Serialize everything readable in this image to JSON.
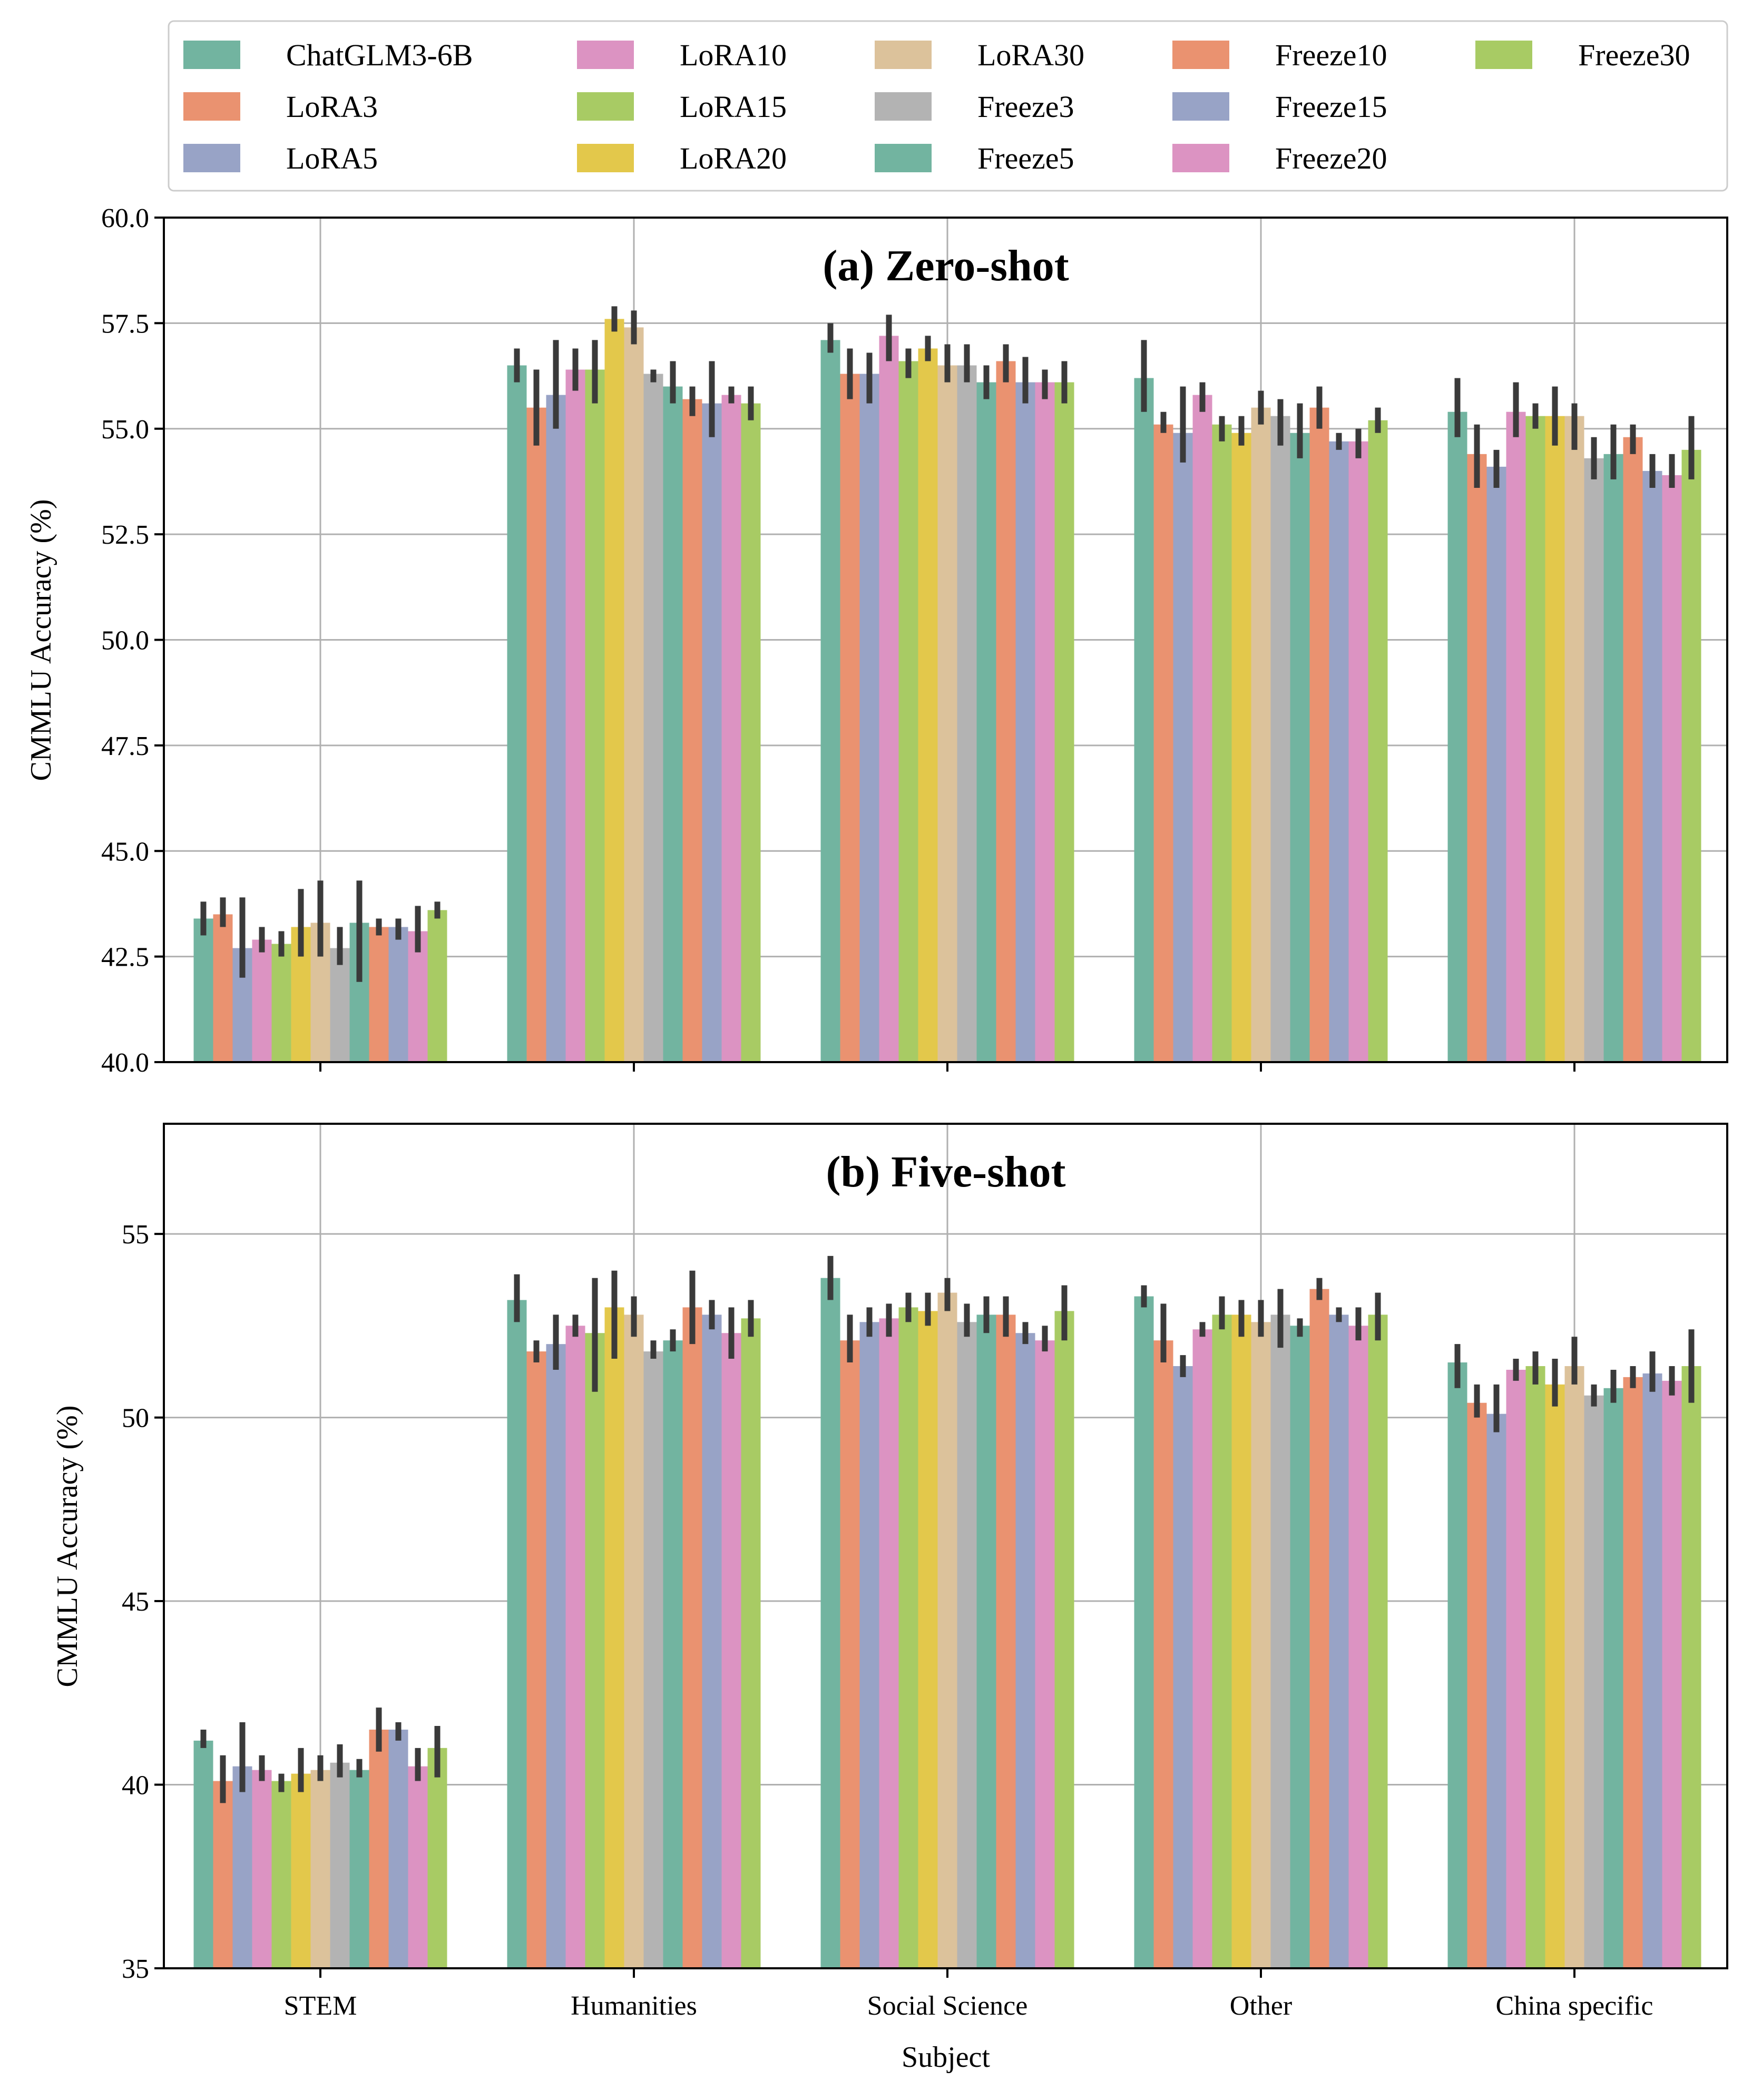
{
  "chart_data": [
    {
      "type": "bar",
      "title": "(a) Zero-shot",
      "xlabel": "",
      "ylabel": "CMMLU Accuracy (%)",
      "ylim": [
        40.0,
        60.0
      ],
      "yticks": [
        "40.0",
        "42.5",
        "45.0",
        "47.5",
        "50.0",
        "52.5",
        "55.0",
        "57.5",
        "60.0"
      ],
      "ytick_values": [
        40.0,
        42.5,
        45.0,
        47.5,
        50.0,
        52.5,
        55.0,
        57.5,
        60.0
      ],
      "grid": true,
      "categories": [
        "STEM",
        "Humanities",
        "Social Science",
        "Other",
        "China specific"
      ],
      "series": [
        {
          "name": "ChatGLM3-6B",
          "values": [
            43.4,
            56.5,
            57.1,
            56.2,
            55.4
          ],
          "err_low": [
            43.0,
            56.1,
            56.8,
            55.4,
            54.8
          ],
          "err_high": [
            43.8,
            56.9,
            57.5,
            57.1,
            56.2
          ]
        },
        {
          "name": "LoRA3",
          "values": [
            43.5,
            55.5,
            56.3,
            55.1,
            54.4
          ],
          "err_low": [
            43.2,
            54.6,
            55.7,
            54.9,
            53.6
          ],
          "err_high": [
            43.9,
            56.4,
            56.9,
            55.4,
            55.1
          ]
        },
        {
          "name": "LoRA5",
          "values": [
            42.7,
            55.8,
            56.3,
            54.9,
            54.1
          ],
          "err_low": [
            42.0,
            55.0,
            55.6,
            54.2,
            53.6
          ],
          "err_high": [
            43.9,
            57.1,
            56.8,
            56.0,
            54.5
          ]
        },
        {
          "name": "LoRA10",
          "values": [
            42.9,
            56.4,
            57.2,
            55.8,
            55.4
          ],
          "err_low": [
            42.6,
            55.9,
            56.6,
            55.4,
            54.8
          ],
          "err_high": [
            43.2,
            56.9,
            57.7,
            56.1,
            56.1
          ]
        },
        {
          "name": "LoRA15",
          "values": [
            42.8,
            56.4,
            56.6,
            55.1,
            55.3
          ],
          "err_low": [
            42.5,
            55.6,
            56.2,
            54.7,
            55.0
          ],
          "err_high": [
            43.1,
            57.1,
            56.9,
            55.3,
            55.6
          ]
        },
        {
          "name": "LoRA20",
          "values": [
            43.2,
            57.6,
            56.9,
            54.9,
            55.3
          ],
          "err_low": [
            42.5,
            57.3,
            56.6,
            54.6,
            54.6
          ],
          "err_high": [
            44.1,
            57.9,
            57.2,
            55.3,
            56.0
          ]
        },
        {
          "name": "LoRA30",
          "values": [
            43.3,
            57.4,
            56.5,
            55.5,
            55.3
          ],
          "err_low": [
            42.5,
            57.0,
            56.1,
            55.1,
            54.5
          ],
          "err_high": [
            44.3,
            57.8,
            57.0,
            55.9,
            55.6
          ]
        },
        {
          "name": "Freeze3",
          "values": [
            42.7,
            56.3,
            56.5,
            55.3,
            54.3
          ],
          "err_low": [
            42.3,
            56.1,
            56.1,
            54.6,
            53.8
          ],
          "err_high": [
            43.2,
            56.4,
            57.0,
            55.7,
            54.8
          ]
        },
        {
          "name": "Freeze5",
          "values": [
            43.3,
            56.0,
            56.1,
            54.9,
            54.4
          ],
          "err_low": [
            41.9,
            55.6,
            55.7,
            54.3,
            53.8
          ],
          "err_high": [
            44.3,
            56.6,
            56.5,
            55.6,
            55.1
          ]
        },
        {
          "name": "Freeze10",
          "values": [
            43.2,
            55.7,
            56.6,
            55.5,
            54.8
          ],
          "err_low": [
            43.0,
            55.3,
            56.1,
            55.0,
            54.4
          ],
          "err_high": [
            43.4,
            56.0,
            57.0,
            56.0,
            55.1
          ]
        },
        {
          "name": "Freeze15",
          "values": [
            43.2,
            55.6,
            56.1,
            54.7,
            54.0
          ],
          "err_low": [
            42.9,
            54.8,
            55.6,
            54.5,
            53.6
          ],
          "err_high": [
            43.4,
            56.6,
            56.7,
            54.9,
            54.4
          ]
        },
        {
          "name": "Freeze20",
          "values": [
            43.1,
            55.8,
            56.1,
            54.7,
            53.9
          ],
          "err_low": [
            42.6,
            55.6,
            55.7,
            54.3,
            53.6
          ],
          "err_high": [
            43.7,
            56.0,
            56.4,
            55.0,
            54.4
          ]
        },
        {
          "name": "Freeze30",
          "values": [
            43.6,
            55.6,
            56.1,
            55.2,
            54.5
          ],
          "err_low": [
            43.4,
            55.2,
            55.6,
            54.9,
            53.8
          ],
          "err_high": [
            43.8,
            56.0,
            56.6,
            55.5,
            55.3
          ]
        }
      ]
    },
    {
      "type": "bar",
      "title": "(b) Five-shot",
      "xlabel": "Subject",
      "ylabel": "CMMLU Accuracy (%)",
      "ylim": [
        35.0,
        58.0
      ],
      "yticks": [
        "35",
        "40",
        "45",
        "50",
        "55"
      ],
      "ytick_values": [
        35,
        40,
        45,
        50,
        55
      ],
      "grid": true,
      "categories": [
        "STEM",
        "Humanities",
        "Social Science",
        "Other",
        "China specific"
      ],
      "series": [
        {
          "name": "ChatGLM3-6B",
          "values": [
            41.2,
            53.2,
            53.8,
            53.3,
            51.5
          ],
          "err_low": [
            41.0,
            52.6,
            53.2,
            53.0,
            50.8
          ],
          "err_high": [
            41.5,
            53.9,
            54.4,
            53.6,
            52.0
          ]
        },
        {
          "name": "LoRA3",
          "values": [
            40.1,
            51.8,
            52.1,
            52.1,
            50.4
          ],
          "err_low": [
            39.5,
            51.5,
            51.5,
            51.5,
            50.0
          ],
          "err_high": [
            40.8,
            52.1,
            52.8,
            53.1,
            50.9
          ]
        },
        {
          "name": "LoRA5",
          "values": [
            40.5,
            52.0,
            52.6,
            51.4,
            50.1
          ],
          "err_low": [
            39.8,
            51.3,
            52.2,
            51.1,
            49.6
          ],
          "err_high": [
            41.7,
            52.8,
            53.0,
            51.7,
            50.9
          ]
        },
        {
          "name": "LoRA10",
          "values": [
            40.4,
            52.5,
            52.7,
            52.4,
            51.3
          ],
          "err_low": [
            40.1,
            52.2,
            52.2,
            52.2,
            51.0
          ],
          "err_high": [
            40.8,
            52.8,
            53.1,
            52.6,
            51.6
          ]
        },
        {
          "name": "LoRA15",
          "values": [
            40.1,
            52.3,
            53.0,
            52.8,
            51.4
          ],
          "err_low": [
            39.8,
            50.7,
            52.6,
            52.4,
            50.9
          ],
          "err_high": [
            40.3,
            53.8,
            53.4,
            53.3,
            51.8
          ]
        },
        {
          "name": "LoRA20",
          "values": [
            40.3,
            53.0,
            52.9,
            52.8,
            50.9
          ],
          "err_low": [
            39.8,
            51.6,
            52.5,
            52.2,
            50.3
          ],
          "err_high": [
            41.0,
            54.0,
            53.4,
            53.2,
            51.6
          ]
        },
        {
          "name": "LoRA30",
          "values": [
            40.4,
            52.8,
            53.4,
            52.6,
            51.4
          ],
          "err_low": [
            40.1,
            52.2,
            52.9,
            52.2,
            50.9
          ],
          "err_high": [
            40.8,
            53.3,
            53.8,
            53.2,
            52.2
          ]
        },
        {
          "name": "Freeze3",
          "values": [
            40.6,
            51.8,
            52.6,
            52.8,
            50.6
          ],
          "err_low": [
            40.2,
            51.6,
            52.2,
            51.9,
            50.3
          ],
          "err_high": [
            41.1,
            52.1,
            53.1,
            53.5,
            50.9
          ]
        },
        {
          "name": "Freeze5",
          "values": [
            40.4,
            52.1,
            52.8,
            52.5,
            50.8
          ],
          "err_low": [
            40.2,
            51.8,
            52.3,
            52.2,
            50.4
          ],
          "err_high": [
            40.7,
            52.4,
            53.3,
            52.7,
            51.3
          ]
        },
        {
          "name": "Freeze10",
          "values": [
            41.5,
            53.0,
            52.8,
            53.5,
            51.1
          ],
          "err_low": [
            40.9,
            52.0,
            52.2,
            53.2,
            50.8
          ],
          "err_high": [
            42.1,
            54.0,
            53.3,
            53.8,
            51.4
          ]
        },
        {
          "name": "Freeze15",
          "values": [
            41.5,
            52.8,
            52.3,
            52.8,
            51.2
          ],
          "err_low": [
            41.2,
            52.4,
            52.0,
            52.6,
            50.7
          ],
          "err_high": [
            41.7,
            53.2,
            52.6,
            53.0,
            51.8
          ]
        },
        {
          "name": "Freeze20",
          "values": [
            40.5,
            52.3,
            52.1,
            52.5,
            51.0
          ],
          "err_low": [
            40.1,
            51.6,
            51.8,
            52.1,
            50.6
          ],
          "err_high": [
            41.0,
            53.0,
            52.5,
            53.0,
            51.4
          ]
        },
        {
          "name": "Freeze30",
          "values": [
            41.0,
            52.7,
            52.9,
            52.8,
            51.4
          ],
          "err_low": [
            40.2,
            52.2,
            52.1,
            52.1,
            50.4
          ],
          "err_high": [
            41.6,
            53.2,
            53.6,
            53.4,
            52.4
          ]
        }
      ]
    }
  ],
  "colors": [
    "#72b4a0",
    "#ea9270",
    "#98a3c6",
    "#dc93c2",
    "#a8cb64",
    "#e3c84b",
    "#dcc29b",
    "#b3b3b3",
    "#72b4a0",
    "#ea9270",
    "#98a3c6",
    "#dc93c2",
    "#a8cb64"
  ],
  "error_bar_color": "#3a3a3a"
}
